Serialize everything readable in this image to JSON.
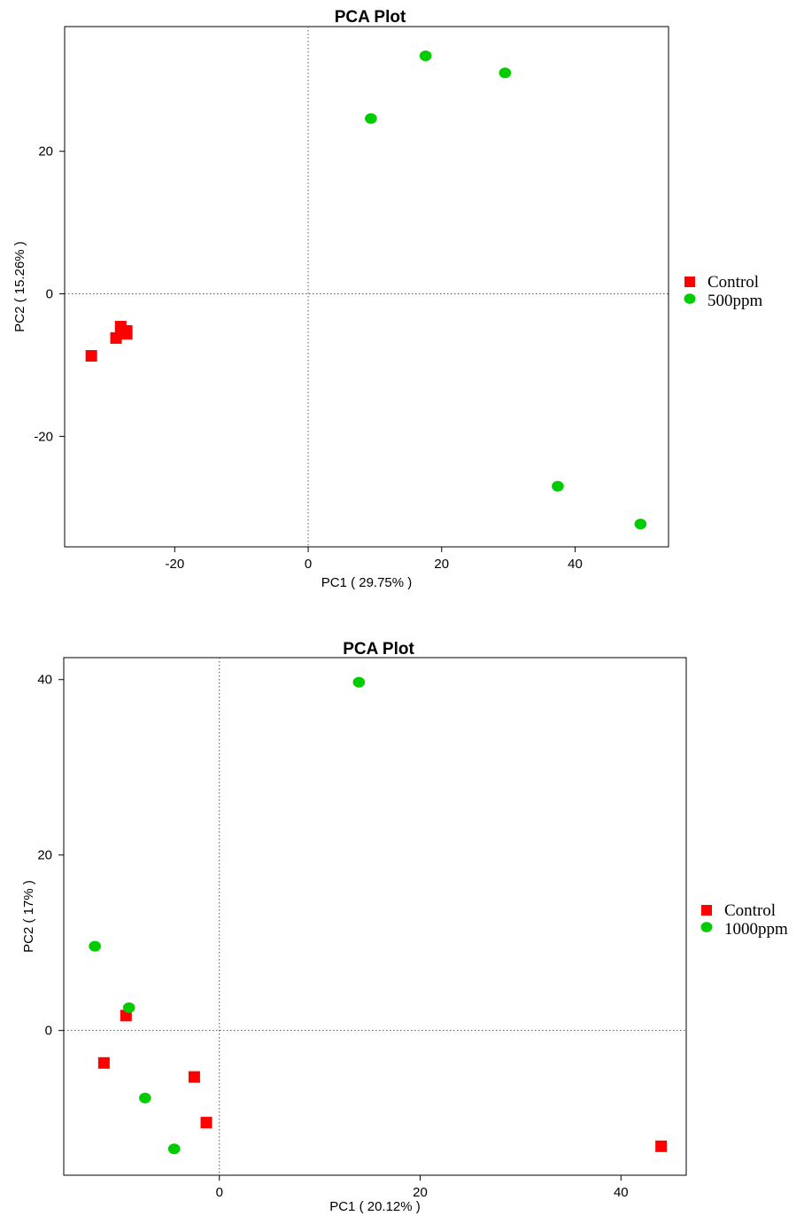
{
  "chart_data": [
    {
      "type": "scatter",
      "title": "PCA Plot",
      "xlabel": "PC1 ( 29.75% )",
      "ylabel": "PC2 ( 15.26% )",
      "xlim": [
        -36.5,
        54
      ],
      "ylim": [
        -35.5,
        37.5
      ],
      "xticks": [
        -20,
        0,
        20,
        40
      ],
      "yticks": [
        -20,
        0,
        20
      ],
      "reference_lines": {
        "x": 0,
        "y": 0
      },
      "legend_placement": "right",
      "series": [
        {
          "name": "Control",
          "marker": "square",
          "color": "#ff0000",
          "points": [
            {
              "x": -32.5,
              "y": -8.7
            },
            {
              "x": -28.8,
              "y": -6.2
            },
            {
              "x": -28.1,
              "y": -4.6
            },
            {
              "x": -27.2,
              "y": -5.2
            },
            {
              "x": -27.2,
              "y": -5.6
            }
          ]
        },
        {
          "name": "500ppm",
          "marker": "circle",
          "color": "#00cc00",
          "points": [
            {
              "x": 9.4,
              "y": 24.6
            },
            {
              "x": 17.6,
              "y": 33.4
            },
            {
              "x": 29.5,
              "y": 31.0
            },
            {
              "x": 37.4,
              "y": -27.0
            },
            {
              "x": 49.8,
              "y": -32.3
            }
          ]
        }
      ]
    },
    {
      "type": "scatter",
      "title": "PCA Plot",
      "xlabel": "PC1 ( 20.12% )",
      "ylabel": "PC2 ( 17% )",
      "xlim": [
        -15.5,
        46.5
      ],
      "ylim": [
        -16.5,
        42.5
      ],
      "xticks": [
        0,
        20,
        40
      ],
      "yticks": [
        0,
        20,
        40
      ],
      "reference_lines": {
        "x": 0,
        "y": 0
      },
      "legend_placement": "right",
      "series": [
        {
          "name": "Control",
          "marker": "square",
          "color": "#ff0000",
          "points": [
            {
              "x": -9.3,
              "y": 1.7
            },
            {
              "x": -11.5,
              "y": -3.7
            },
            {
              "x": -2.5,
              "y": -5.3
            },
            {
              "x": -1.3,
              "y": -10.5
            },
            {
              "x": 44.0,
              "y": -13.2
            }
          ]
        },
        {
          "name": "1000ppm",
          "marker": "circle",
          "color": "#00cc00",
          "points": [
            {
              "x": -12.4,
              "y": 9.6
            },
            {
              "x": -9.0,
              "y": 2.6
            },
            {
              "x": -7.4,
              "y": -7.7
            },
            {
              "x": -4.5,
              "y": -13.5
            },
            {
              "x": 13.9,
              "y": 39.7
            }
          ]
        }
      ]
    }
  ]
}
